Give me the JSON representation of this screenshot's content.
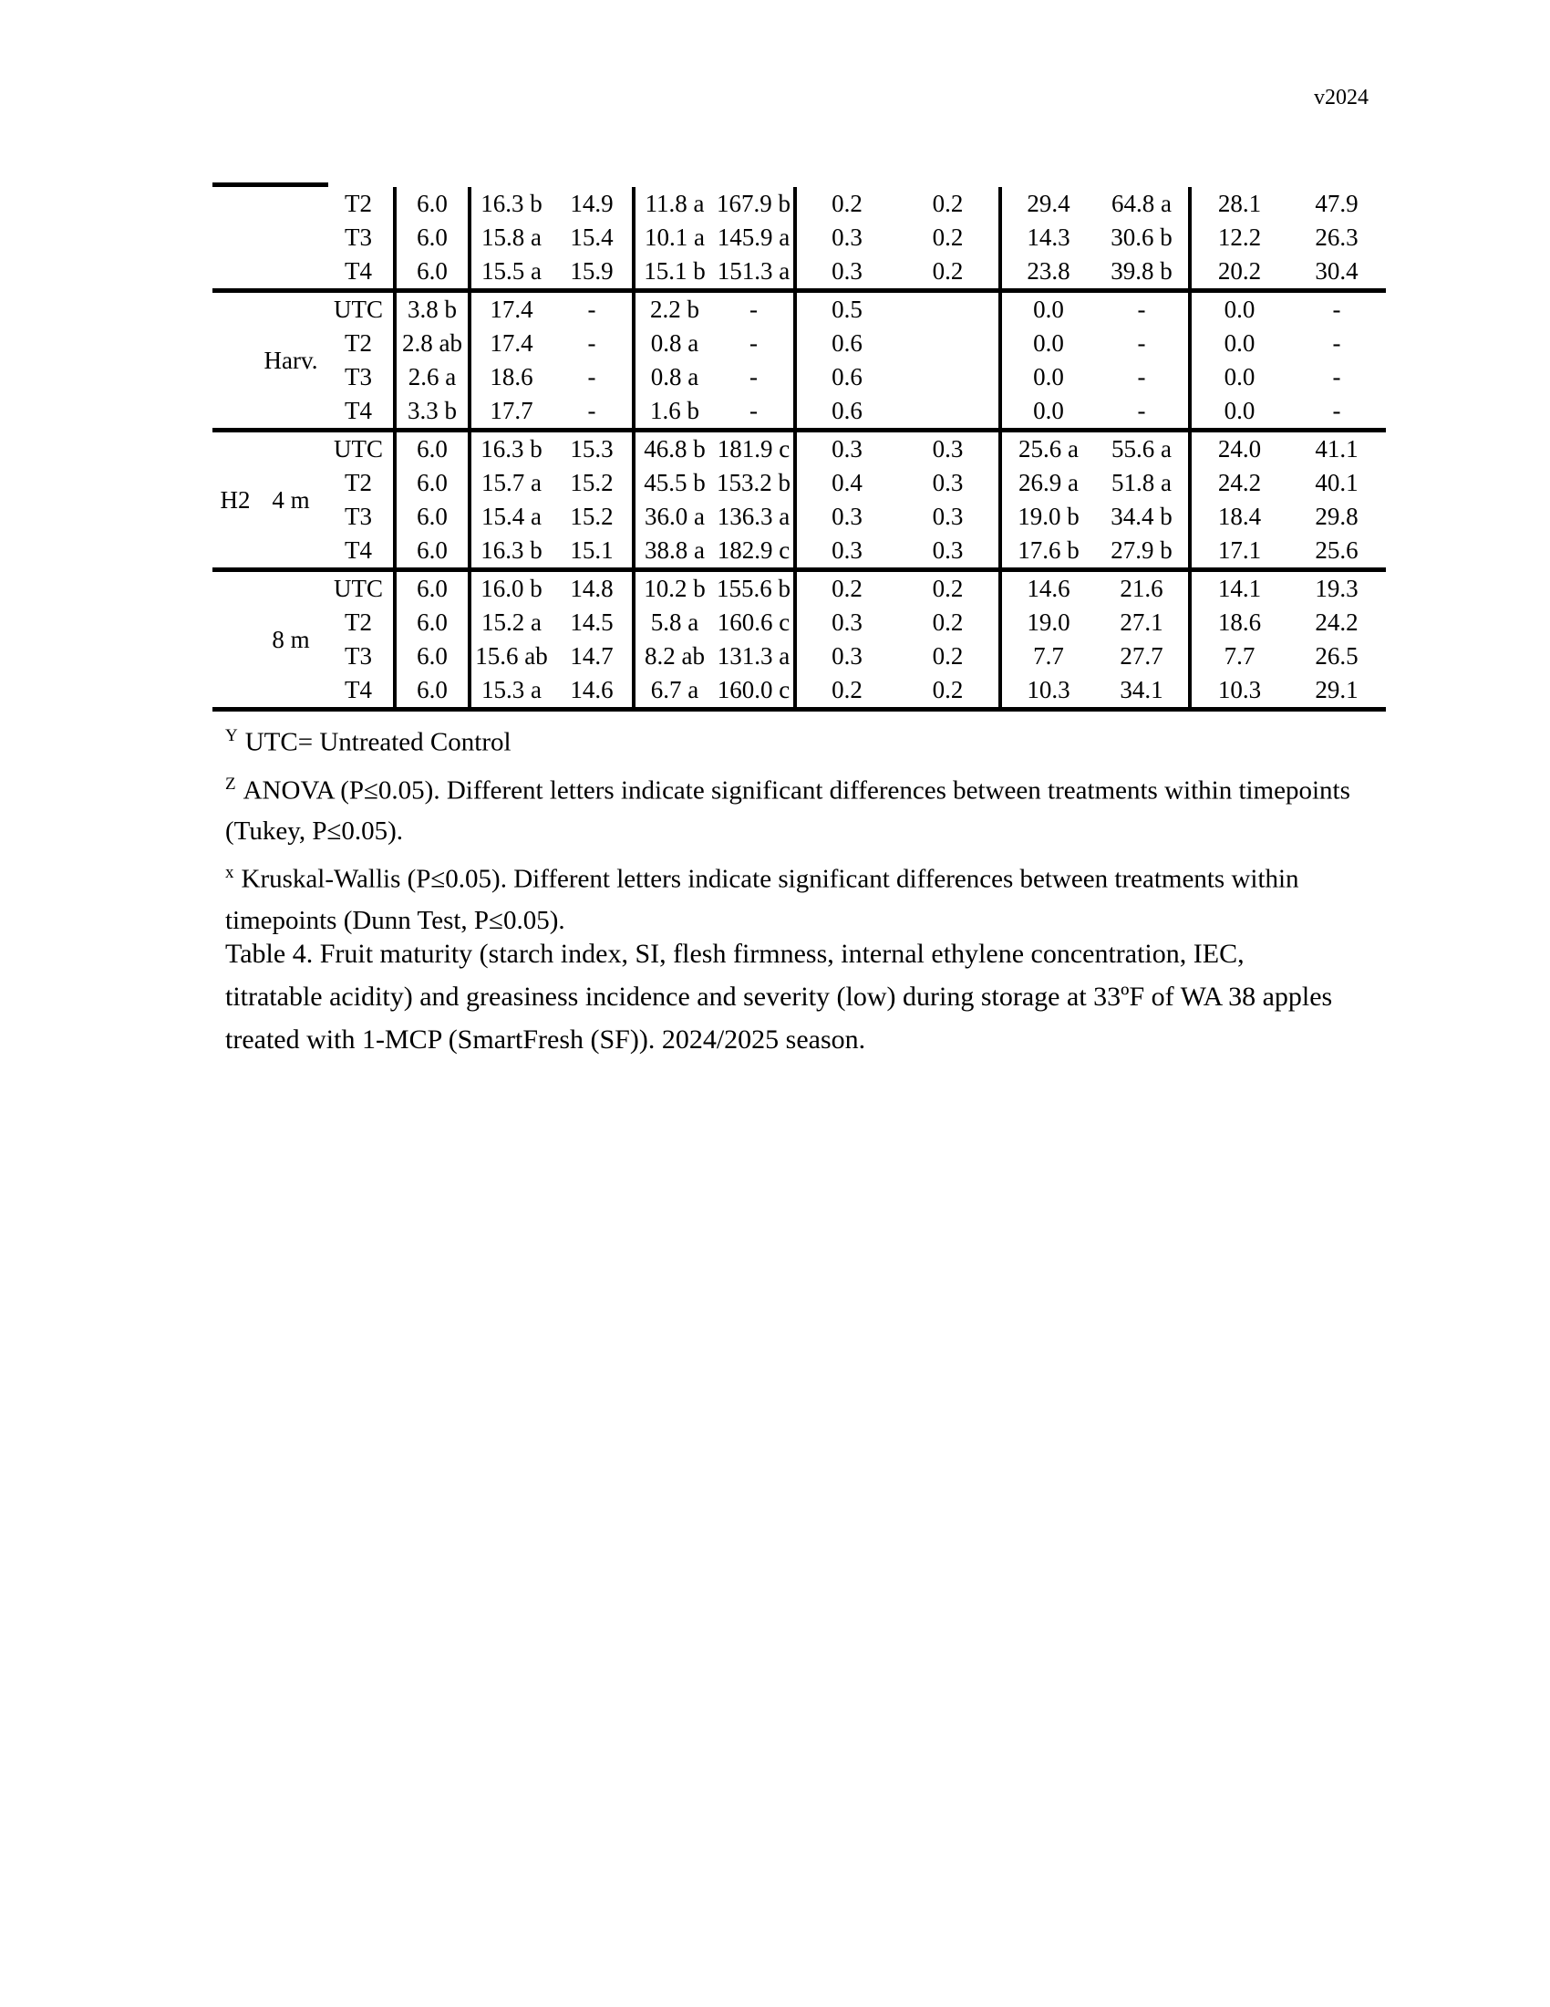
{
  "page": {
    "version_tag": "v2024"
  },
  "table": {
    "groups": [
      {
        "block": "",
        "period": "",
        "rows": [
          {
            "treatment": "T2",
            "values": [
              "6.0",
              "16.3 b",
              "14.9",
              "11.8 a",
              "167.9 b",
              "0.2",
              "0.2",
              "29.4",
              "64.8 a",
              "28.1",
              "47.9"
            ]
          },
          {
            "treatment": "T3",
            "values": [
              "6.0",
              "15.8 a",
              "15.4",
              "10.1 a",
              "145.9 a",
              "0.3",
              "0.2",
              "14.3",
              "30.6 b",
              "12.2",
              "26.3"
            ]
          },
          {
            "treatment": "T4",
            "values": [
              "6.0",
              "15.5 a",
              "15.9",
              "15.1 b",
              "151.3 a",
              "0.3",
              "0.2",
              "23.8",
              "39.8 b",
              "20.2",
              "30.4"
            ]
          }
        ]
      },
      {
        "block": "",
        "period": "Harv.",
        "rows": [
          {
            "treatment": "UTC",
            "values": [
              "3.8 b",
              "17.4",
              "-",
              "2.2 b",
              "-",
              "0.5",
              "",
              "0.0",
              "-",
              "0.0",
              "-"
            ]
          },
          {
            "treatment": "T2",
            "values": [
              "2.8 ab",
              "17.4",
              "-",
              "0.8 a",
              "-",
              "0.6",
              "",
              "0.0",
              "-",
              "0.0",
              "-"
            ]
          },
          {
            "treatment": "T3",
            "values": [
              "2.6 a",
              "18.6",
              "-",
              "0.8 a",
              "-",
              "0.6",
              "",
              "0.0",
              "-",
              "0.0",
              "-"
            ]
          },
          {
            "treatment": "T4",
            "values": [
              "3.3 b",
              "17.7",
              "-",
              "1.6 b",
              "-",
              "0.6",
              "",
              "0.0",
              "-",
              "0.0",
              "-"
            ]
          }
        ]
      },
      {
        "block": "H2",
        "period": "4 m",
        "rows": [
          {
            "treatment": "UTC",
            "values": [
              "6.0",
              "16.3 b",
              "15.3",
              "46.8 b",
              "181.9 c",
              "0.3",
              "0.3",
              "25.6 a",
              "55.6 a",
              "24.0",
              "41.1"
            ]
          },
          {
            "treatment": "T2",
            "values": [
              "6.0",
              "15.7 a",
              "15.2",
              "45.5 b",
              "153.2 b",
              "0.4",
              "0.3",
              "26.9 a",
              "51.8 a",
              "24.2",
              "40.1"
            ]
          },
          {
            "treatment": "T3",
            "values": [
              "6.0",
              "15.4 a",
              "15.2",
              "36.0 a",
              "136.3 a",
              "0.3",
              "0.3",
              "19.0 b",
              "34.4 b",
              "18.4",
              "29.8"
            ]
          },
          {
            "treatment": "T4",
            "values": [
              "6.0",
              "16.3 b",
              "15.1",
              "38.8 a",
              "182.9 c",
              "0.3",
              "0.3",
              "17.6 b",
              "27.9 b",
              "17.1",
              "25.6"
            ]
          }
        ]
      },
      {
        "block": "",
        "period": "8 m",
        "rows": [
          {
            "treatment": "UTC",
            "values": [
              "6.0",
              "16.0 b",
              "14.8",
              "10.2 b",
              "155.6 b",
              "0.2",
              "0.2",
              "14.6",
              "21.6",
              "14.1",
              "19.3"
            ]
          },
          {
            "treatment": "T2",
            "values": [
              "6.0",
              "15.2 a",
              "14.5",
              "5.8 a",
              "160.6 c",
              "0.3",
              "0.2",
              "19.0",
              "27.1",
              "18.6",
              "24.2"
            ]
          },
          {
            "treatment": "T3",
            "values": [
              "6.0",
              "15.6 ab",
              "14.7",
              "8.2 ab",
              "131.3 a",
              "0.3",
              "0.2",
              "7.7",
              "27.7",
              "7.7",
              "26.5"
            ]
          },
          {
            "treatment": "T4",
            "values": [
              "6.0",
              "15.3 a",
              "14.6",
              "6.7 a",
              "160.0 c",
              "0.2",
              "0.2",
              "10.3",
              "34.1",
              "10.3",
              "29.1"
            ]
          }
        ]
      }
    ]
  },
  "footnotes": [
    {
      "marker": "Y",
      "lines": [
        "UTC= Untreated Control"
      ]
    },
    {
      "marker": "Z",
      "lines": [
        "ANOVA (P≤0.05). Different letters indicate significant differences between treatments within timepoints",
        "(Tukey, P≤0.05)."
      ]
    },
    {
      "marker": "x",
      "lines": [
        "Kruskal-Wallis (P≤0.05). Different letters indicate significant differences between treatments within",
        "timepoints (Dunn Test, P≤0.05)."
      ]
    }
  ],
  "caption": {
    "lines": [
      "Table 4. Fruit maturity (starch index, SI, flesh firmness, internal ethylene concentration, IEC,",
      "titratable acidity) and greasiness incidence and severity (low) during storage at 33ºF of WA 38 apples",
      "treated with 1-MCP (SmartFresh (SF)). 2024/2025 season."
    ]
  }
}
